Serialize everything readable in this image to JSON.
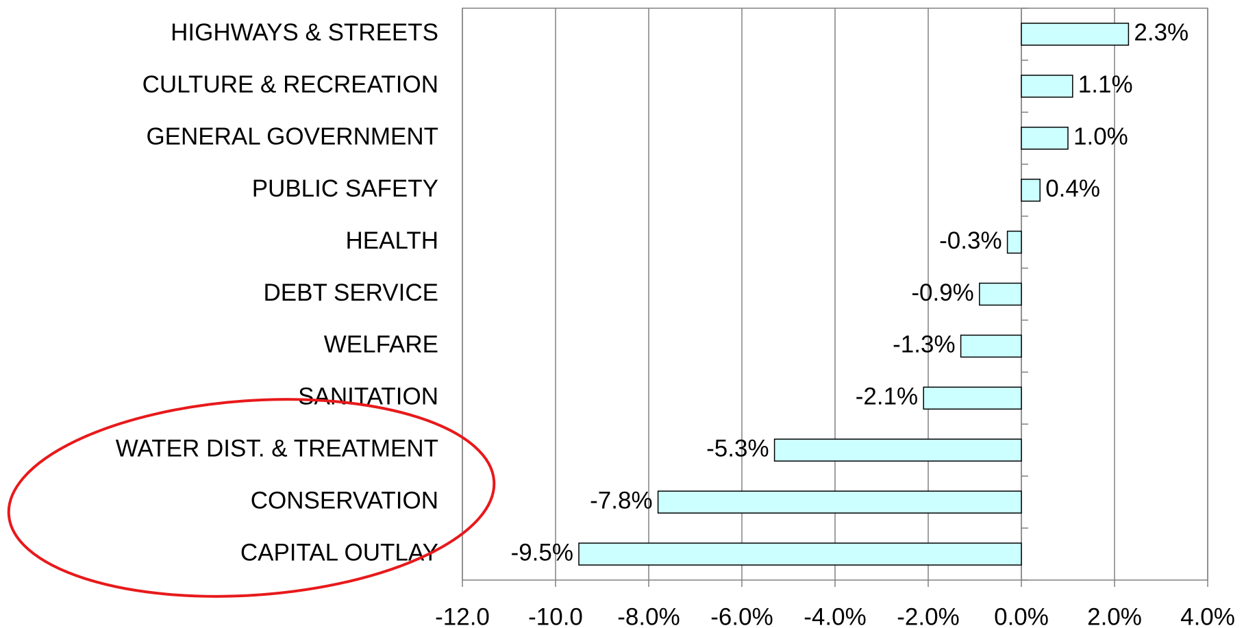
{
  "chart_data": {
    "type": "bar",
    "orientation": "horizontal",
    "categories": [
      "HIGHWAYS & STREETS",
      "CULTURE & RECREATION",
      "GENERAL GOVERNMENT",
      "PUBLIC SAFETY",
      "HEALTH",
      "DEBT SERVICE",
      "WELFARE",
      "SANITATION",
      "WATER DIST. & TREATMENT",
      "CONSERVATION",
      "CAPITAL OUTLAY"
    ],
    "values": [
      2.3,
      1.1,
      1.0,
      0.4,
      -0.3,
      -0.9,
      -1.3,
      -2.1,
      -5.3,
      -7.8,
      -9.5
    ],
    "value_labels": [
      "2.3%",
      "1.1%",
      "1.0%",
      "0.4%",
      "-0.3%",
      "-0.9%",
      "-1.3%",
      "-2.1%",
      "-5.3%",
      "-7.8%",
      "-9.5%"
    ],
    "color": "#ccffff",
    "xlim": [
      -12,
      4
    ],
    "xticks": [
      {
        "value": -12,
        "label": "-12.0"
      },
      {
        "value": -10,
        "label": "-10.0"
      },
      {
        "value": -8,
        "label": "-8.0%"
      },
      {
        "value": -6,
        "label": "-6.0%"
      },
      {
        "value": -4,
        "label": "-4.0%"
      },
      {
        "value": -2,
        "label": "-2.0%"
      },
      {
        "value": 0,
        "label": "0.0%"
      },
      {
        "value": 2,
        "label": "2.0%"
      },
      {
        "value": 4,
        "label": "4.0%"
      }
    ],
    "grid": true
  }
}
